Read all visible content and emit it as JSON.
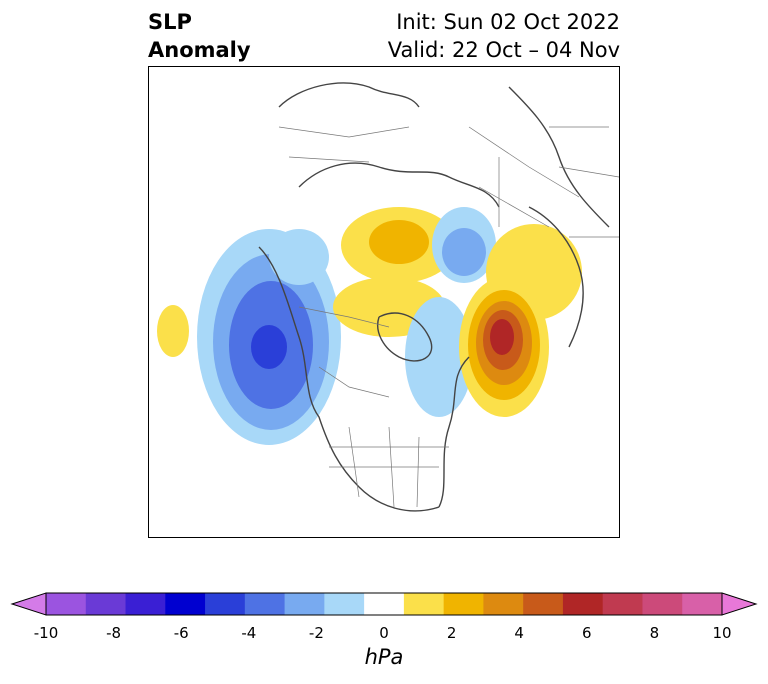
{
  "header": {
    "title_line1": "SLP",
    "title_line2": "Anomaly",
    "init": "Init: Sun 02 Oct 2022",
    "valid": "Valid: 22 Oct – 04 Nov"
  },
  "colorbar": {
    "unit_label": "hPa",
    "ticks": [
      "-10",
      "-8",
      "-6",
      "-4",
      "-2",
      "0",
      "2",
      "4",
      "6",
      "8",
      "10"
    ],
    "colors": [
      "#d47be8",
      "#9b54e0",
      "#6a3ad6",
      "#3a1fd4",
      "#0000d0",
      "#2a3fd8",
      "#4e72e4",
      "#78aaf0",
      "#a8d8f8",
      "#ffffff",
      "#fbe04a",
      "#f0b400",
      "#dd8a10",
      "#c85a1a",
      "#b02626",
      "#c03a50",
      "#cc4a7a",
      "#d860a8",
      "#e878d8"
    ]
  },
  "map": {
    "projection": "north-polar-stereographic",
    "anomalies": [
      {
        "name": "north-pacific-low",
        "sign": "negative",
        "peak_hpa": -6
      },
      {
        "name": "western-alaska-low-weak",
        "sign": "negative",
        "peak_hpa": -2
      },
      {
        "name": "hawaii-high-weak",
        "sign": "positive",
        "peak_hpa": 2
      },
      {
        "name": "greenland-high",
        "sign": "positive",
        "peak_hpa": 3
      },
      {
        "name": "scandinavia-low",
        "sign": "negative",
        "peak_hpa": -3
      },
      {
        "name": "siberia-high",
        "sign": "positive",
        "peak_hpa": 2
      },
      {
        "name": "north-atlantic-europe-high",
        "sign": "positive",
        "peak_hpa": 7
      },
      {
        "name": "arctic-canada-low",
        "sign": "negative",
        "peak_hpa": -2
      }
    ]
  }
}
